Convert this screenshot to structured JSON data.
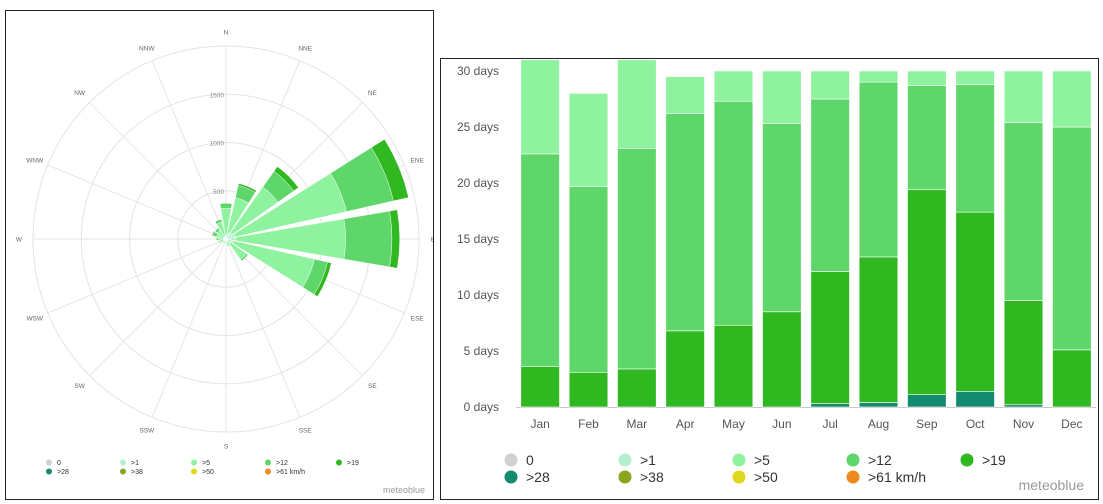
{
  "credit": "meteoblue",
  "legend": [
    {
      "label": "0",
      "color": "#d0d0d0"
    },
    {
      "label": ">1",
      "color": "#b4f0cf"
    },
    {
      "label": ">5",
      "color": "#8ef29f"
    },
    {
      "label": ">12",
      "color": "#5ed66a"
    },
    {
      "label": ">19",
      "color": "#2fb81f"
    },
    {
      "label": ">28",
      "color": "#148a6e"
    },
    {
      "label": ">38",
      "color": "#8aa61e"
    },
    {
      "label": ">50",
      "color": "#e0d81c"
    },
    {
      "label": ">61 km/h",
      "color": "#ee8a1e"
    }
  ],
  "chart_data": [
    {
      "type": "polar-bar",
      "title": "",
      "directions": [
        "N",
        "NNE",
        "NE",
        "ENE",
        "E",
        "ESE",
        "SE",
        "SSE",
        "S",
        "SSW",
        "SW",
        "WSW",
        "W",
        "WNW",
        "NW",
        "NNW"
      ],
      "radial_ticks": [
        "0",
        "500",
        "1000",
        "1500"
      ],
      "radial_max": 2000,
      "series": [
        {
          "name": ">1",
          "values": [
            40,
            60,
            80,
            100,
            100,
            80,
            60,
            30,
            20,
            20,
            20,
            30,
            30,
            30,
            30,
            30
          ]
        },
        {
          "name": ">5",
          "values": [
            280,
            380,
            580,
            1180,
            1140,
            860,
            200,
            40,
            20,
            20,
            20,
            40,
            50,
            70,
            80,
            150
          ]
        },
        {
          "name": ">12",
          "values": [
            50,
            130,
            200,
            500,
            480,
            140,
            20,
            10,
            5,
            5,
            5,
            10,
            20,
            40,
            30,
            30
          ]
        },
        {
          "name": ">19",
          "values": [
            0,
            20,
            60,
            160,
            80,
            40,
            0,
            0,
            0,
            0,
            0,
            0,
            0,
            10,
            0,
            0
          ]
        }
      ]
    },
    {
      "type": "bar",
      "stacked": true,
      "title": "",
      "categories": [
        "Jan",
        "Feb",
        "Mar",
        "Apr",
        "May",
        "Jun",
        "Jul",
        "Aug",
        "Sep",
        "Oct",
        "Nov",
        "Dec"
      ],
      "y_ticks": [
        "0 days",
        "5 days",
        "10 days",
        "15 days",
        "20 days",
        "25 days",
        "30 days"
      ],
      "ylim": [
        0,
        30
      ],
      "series": [
        {
          "name": ">28",
          "values": [
            0,
            0,
            0,
            0,
            0,
            0,
            0.3,
            0.4,
            1.1,
            1.4,
            0.2,
            0
          ]
        },
        {
          "name": ">19",
          "values": [
            3.6,
            3.1,
            3.4,
            6.8,
            7.3,
            8.5,
            11.8,
            13.0,
            18.3,
            16.0,
            9.3,
            5.1
          ]
        },
        {
          "name": ">12",
          "values": [
            19.0,
            16.6,
            19.7,
            19.4,
            20.0,
            16.8,
            15.4,
            15.6,
            9.3,
            11.4,
            15.9,
            19.9
          ]
        },
        {
          "name": ">5",
          "values": [
            8.4,
            8.3,
            7.9,
            3.3,
            2.7,
            4.7,
            2.5,
            1.0,
            1.3,
            1.2,
            4.6,
            5.0
          ]
        }
      ]
    }
  ]
}
